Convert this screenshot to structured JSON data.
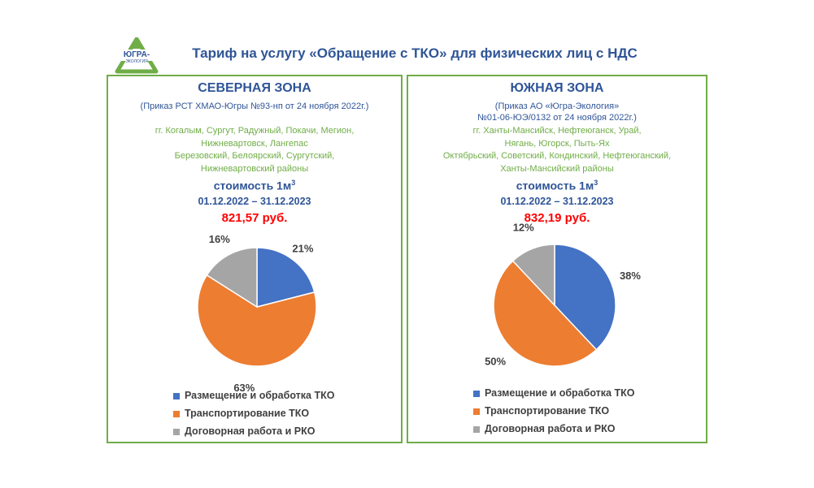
{
  "header": {
    "title": "Тариф на услугу «Обращение с ТКО» для физических лиц с НДС",
    "logo_text": "ЮГРА- ЭКОЛОГИЯ"
  },
  "colors": {
    "blue": "#4472c4",
    "orange": "#ed7d31",
    "gray": "#a5a5a5",
    "accent": "#2f5597",
    "green": "#70ad47",
    "red": "#ff0000"
  },
  "north": {
    "title": "СЕВЕРНАЯ ЗОНА",
    "order": [
      "(Приказ РСТ ХМАО-Югры №93-нп от 24 ноября 2022г.)"
    ],
    "cities": [
      "гг. Когалым, Сургут, Радужный, Покачи, Мегион,",
      "Нижневартовск, Лангепас",
      "Березовский, Белоярский, Сургутский,",
      "Нижневартовский районы"
    ],
    "cost_label": "стоимость 1м",
    "cost_sup": "3",
    "dates": "01.12.2022 –  31.12.2023",
    "price": "821,57 руб."
  },
  "south": {
    "title": "ЮЖНАЯ ЗОНА",
    "order": [
      "(Приказ АО «Югра-Экология»",
      "№01-06-ЮЭ/0132 от 24 ноября 2022г.)"
    ],
    "cities": [
      "гг. Ханты-Мансийск, Нефтеюганск, Урай,",
      "Нягань, Югорск, Пыть-Ях",
      "Октябрьский, Советский, Кондинский, Нефтеюганский,",
      "Ханты-Мансийский районы"
    ],
    "cost_label": "стоимость 1м",
    "cost_sup": "3",
    "dates": "01.12.2022 –  31.12.2023",
    "price": "832,19 руб."
  },
  "chart_data": [
    {
      "type": "pie",
      "title": "",
      "categories": [
        "Размещение и обработка ТКО",
        "Транспортирование ТКО",
        "Договорная работа и РКО"
      ],
      "values": [
        21,
        63,
        16
      ],
      "labels": [
        "21%",
        "63%",
        "16%"
      ],
      "colors": [
        "#4472c4",
        "#ed7d31",
        "#a5a5a5"
      ],
      "legend": "bottom"
    },
    {
      "type": "pie",
      "title": "",
      "categories": [
        "Размещение и обработка ТКО",
        "Транспортирование ТКО",
        "Договорная работа и РКО"
      ],
      "values": [
        38,
        50,
        12
      ],
      "labels": [
        "38%",
        "50%",
        "12%"
      ],
      "colors": [
        "#4472c4",
        "#ed7d31",
        "#a5a5a5"
      ],
      "legend": "bottom"
    }
  ]
}
